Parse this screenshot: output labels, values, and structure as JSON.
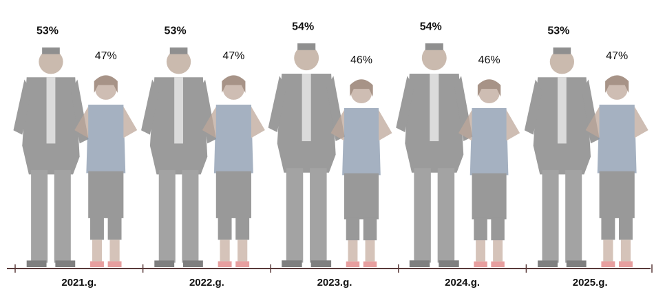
{
  "chart_data": {
    "type": "pictograph",
    "categories": [
      "2021.g.",
      "2022.g.",
      "2023.g.",
      "2024.g.",
      "2025.g."
    ],
    "series": [
      {
        "color": "#7a7a7a",
        "values": [
          53,
          53,
          54,
          54,
          53
        ],
        "value_labels": [
          "53%",
          "53%",
          "54%",
          "54%",
          "53%"
        ]
      },
      {
        "color": "#8798ad",
        "values": [
          47,
          47,
          46,
          46,
          47
        ],
        "value_labels": [
          "47%",
          "47%",
          "46%",
          "46%",
          "47%"
        ]
      }
    ]
  }
}
